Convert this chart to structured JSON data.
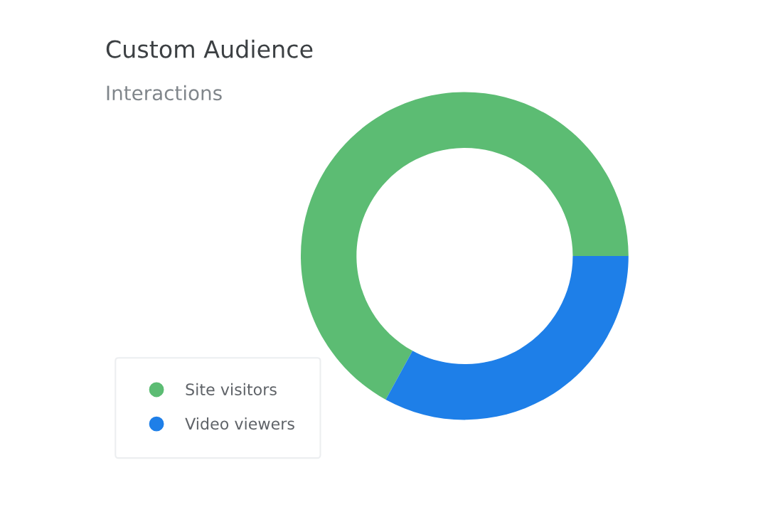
{
  "chart_data": {
    "type": "donut",
    "title": "Custom Audience",
    "subtitle": "Interactions",
    "categories": [
      "Site visitors",
      "Video viewers"
    ],
    "values": [
      67,
      33
    ],
    "colors": [
      "#5cbc73",
      "#1e7fe8"
    ],
    "legend": "bottom left"
  }
}
